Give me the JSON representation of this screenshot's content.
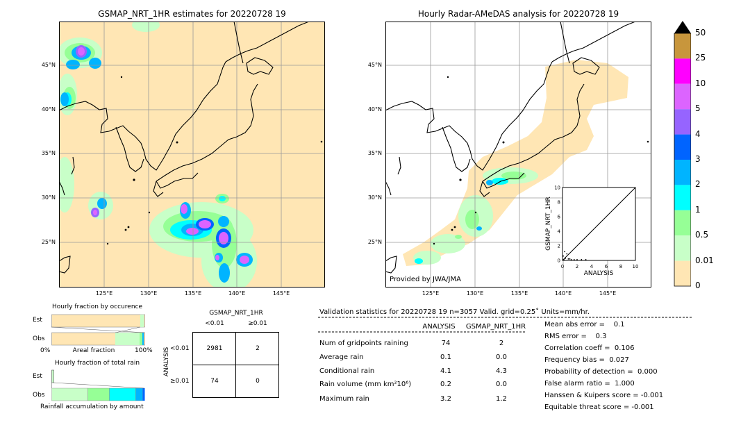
{
  "left_map": {
    "title": "GSMAP_NRT_1HR estimates for 20220728 19",
    "lat_labels": [
      "45°N",
      "40°N",
      "35°N",
      "30°N",
      "25°N"
    ],
    "lon_labels": [
      "125°E",
      "130°E",
      "135°E",
      "140°E",
      "145°E"
    ]
  },
  "right_map": {
    "title": "Hourly Radar-AMeDAS analysis for 20220728 19",
    "lat_labels": [
      "45°N",
      "40°N",
      "35°N",
      "30°N",
      "25°N"
    ],
    "lon_labels": [
      "125°E",
      "130°E",
      "135°E",
      "140°E",
      "145°E"
    ],
    "credit": "Provided by JWA/JMA",
    "inset": {
      "xlabel": "ANALYSIS",
      "ylabel": "GSMAP_NRT_1HR",
      "ticks": [
        "0",
        "2",
        "4",
        "6",
        "8",
        "10"
      ]
    }
  },
  "colorbar": {
    "labels": [
      "50",
      "25",
      "10",
      "5",
      "4",
      "3",
      "2",
      "1",
      "0.5",
      "0.01",
      "0"
    ],
    "colors": [
      "#c8963c",
      "#ff00ff",
      "#dc64ff",
      "#9664ff",
      "#0064ff",
      "#00b4ff",
      "#00ffff",
      "#96ff96",
      "#c8ffc8",
      "#ffe6b4"
    ]
  },
  "fraction_occurrence": {
    "title": "Hourly fraction by occurence",
    "row_labels": [
      "Est",
      "Obs"
    ],
    "axis_left": "0%",
    "axis_mid": "Areal fraction",
    "axis_right": "100%"
  },
  "fraction_rain": {
    "title": "Hourly fraction of total rain",
    "row_labels": [
      "Est",
      "Obs"
    ],
    "footer": "Rainfall accumulation by amount"
  },
  "contingency": {
    "col_header": "GSMAP_NRT_1HR",
    "col_lt": "<0.01",
    "col_ge": "≥0.01",
    "row_header": "ANALYSIS",
    "row_lt": "<0.01",
    "row_ge": "≥0.01",
    "cells": [
      "2981",
      "2",
      "74",
      "0"
    ]
  },
  "validation": {
    "header": "Validation statistics for 20220728 19  n=3057 Valid. grid=0.25˚ Units=mm/hr.",
    "col1": "ANALYSIS",
    "col2": "GSMAP_NRT_1HR",
    "rows": [
      {
        "label": "Num of gridpoints raining",
        "a": "74",
        "g": "2"
      },
      {
        "label": "Average rain",
        "a": "0.1",
        "g": "0.0"
      },
      {
        "label": "Conditional rain",
        "a": "4.1",
        "g": "4.3"
      },
      {
        "label": "Rain volume (mm km²10⁶)",
        "a": "0.2",
        "g": "0.0"
      },
      {
        "label": "Maximum rain",
        "a": "3.2",
        "g": "1.2"
      }
    ],
    "scores": [
      "Mean abs error =    0.1",
      "RMS error =    0.3",
      "Correlation coeff =  0.106",
      "Frequency bias =  0.027",
      "Probability of detection =  0.000",
      "False alarm ratio =  1.000",
      "Hanssen & Kuipers score = -0.001",
      "Equitable threat score = -0.001"
    ]
  },
  "chart_data": {
    "type": "table",
    "title": "Validation statistics for 20220728 19",
    "columns": [
      "ANALYSIS",
      "GSMAP_NRT_1HR"
    ],
    "rows": [
      "Num of gridpoints raining",
      "Average rain",
      "Conditional rain",
      "Rain volume",
      "Maximum rain"
    ],
    "values": [
      [
        74,
        2
      ],
      [
        0.1,
        0.0
      ],
      [
        4.1,
        4.3
      ],
      [
        0.2,
        0.0
      ],
      [
        3.2,
        1.2
      ]
    ],
    "contingency_table": [
      [
        2981,
        2
      ],
      [
        74,
        0
      ]
    ]
  }
}
